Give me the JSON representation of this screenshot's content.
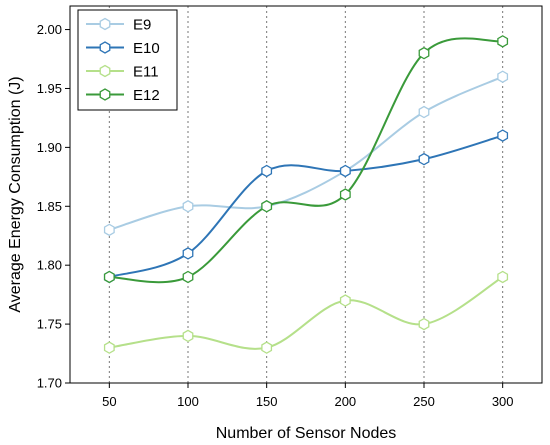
{
  "chart_data": {
    "type": "line",
    "xlabel": "Number of Sensor Nodes",
    "ylabel": "Average Energy Consumption (J)",
    "x": [
      50,
      100,
      150,
      200,
      250,
      300
    ],
    "x_ticks": [
      "50",
      "100",
      "150",
      "200",
      "250",
      "300"
    ],
    "y_ticks": [
      "1.70",
      "1.75",
      "1.80",
      "1.85",
      "1.90",
      "1.95",
      "2.00"
    ],
    "xlim": [
      25,
      325
    ],
    "ylim": [
      1.7,
      2.02
    ],
    "grid": "vertical-dotted",
    "legend_position": "top-left",
    "series": [
      {
        "name": "E9",
        "color": "#a9cce3",
        "marker": "hexagon",
        "values": [
          1.83,
          1.85,
          1.85,
          1.88,
          1.93,
          1.96
        ]
      },
      {
        "name": "E10",
        "color": "#2e75b6",
        "marker": "hexagon",
        "values": [
          1.79,
          1.81,
          1.88,
          1.88,
          1.89,
          1.91
        ]
      },
      {
        "name": "E11",
        "color": "#b5e08a",
        "marker": "hexagon",
        "values": [
          1.73,
          1.74,
          1.73,
          1.77,
          1.75,
          1.79
        ]
      },
      {
        "name": "E12",
        "color": "#3a9a3a",
        "marker": "hexagon",
        "values": [
          1.79,
          1.79,
          1.85,
          1.86,
          1.98,
          1.99
        ]
      }
    ]
  }
}
